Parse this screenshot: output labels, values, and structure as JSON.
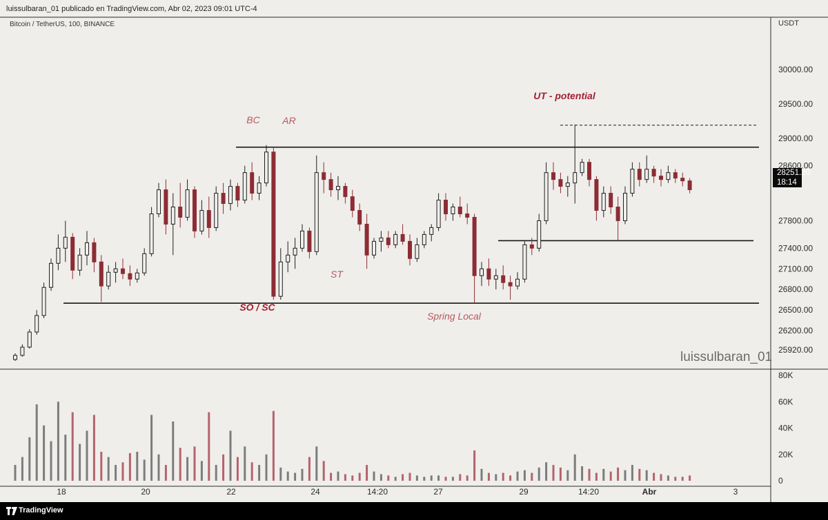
{
  "header": {
    "publish_line": "luissulbaran_01 publicado en TradingView.com, Abr 02, 2023 09:01 UTC-4",
    "symbol_line": "Bitcoin / TetherUS, 100, BINANCE",
    "currency": "USDT",
    "watermark": "luissulbaran_01"
  },
  "price_tag": {
    "price": "28251.20",
    "countdown": "18:14"
  },
  "footer": {
    "brand": "TradingView"
  },
  "colors": {
    "up_candle": "#1f1f1f",
    "down_candle": "#8d2c34",
    "volume_up": "#7c7c7c",
    "volume_down": "#b5636b",
    "annotation_dark": "#a3202f",
    "annotation_light": "#b8585f",
    "background": "#efeeeb"
  },
  "chart_data": {
    "type": "candlestick",
    "price_axis": {
      "ticks": [
        "30000.00",
        "29500.00",
        "29000.00",
        "28600.00",
        "28251.20",
        "27800.00",
        "27400.00",
        "27100.00",
        "26800.00",
        "26500.00",
        "26200.00",
        "25920.00"
      ],
      "ylim": [
        25780,
        30300
      ]
    },
    "time_axis": {
      "ticks": [
        "18",
        "20",
        "22",
        "24",
        "14:20",
        "27",
        "29",
        "14:20",
        "Abr",
        "3"
      ]
    },
    "volume_axis": {
      "ticks": [
        "80K",
        "60K",
        "40K",
        "20K",
        "0"
      ],
      "ylim": [
        0,
        80000
      ]
    },
    "annotations": [
      {
        "text": "BC",
        "style": "light"
      },
      {
        "text": "AR",
        "style": "light"
      },
      {
        "text": "UT - potential",
        "style": "dark"
      },
      {
        "text": "SO / SC",
        "style": "dark"
      },
      {
        "text": "ST",
        "style": "light"
      },
      {
        "text": "Spring Local",
        "style": "light"
      }
    ],
    "levels": [
      {
        "name": "range-top",
        "price": 28870
      },
      {
        "name": "range-bottom",
        "price": 26600
      },
      {
        "name": "ut-high",
        "price": 29190
      },
      {
        "name": "support-mid",
        "price": 27510
      }
    ],
    "candles": [
      [
        25780,
        25870,
        25760,
        25840
      ],
      [
        25840,
        26000,
        25820,
        25960
      ],
      [
        25960,
        26220,
        25940,
        26180
      ],
      [
        26180,
        26500,
        26140,
        26420
      ],
      [
        26420,
        26900,
        26380,
        26830
      ],
      [
        26830,
        27250,
        26780,
        27180
      ],
      [
        27180,
        27600,
        27080,
        27400
      ],
      [
        27400,
        27800,
        27200,
        27560
      ],
      [
        27560,
        27620,
        26950,
        27080
      ],
      [
        27080,
        27400,
        27000,
        27300
      ],
      [
        27300,
        27650,
        27150,
        27480
      ],
      [
        27480,
        27550,
        27050,
        27200
      ],
      [
        27200,
        27300,
        26620,
        26850
      ],
      [
        26850,
        27150,
        26800,
        27050
      ],
      [
        27050,
        27200,
        26900,
        27100
      ],
      [
        27100,
        27250,
        26950,
        27030
      ],
      [
        27030,
        27150,
        26850,
        26950
      ],
      [
        26950,
        27100,
        26900,
        27040
      ],
      [
        27040,
        27400,
        27000,
        27320
      ],
      [
        27320,
        28000,
        27280,
        27900
      ],
      [
        27900,
        28350,
        27850,
        28250
      ],
      [
        28250,
        28400,
        27600,
        27750
      ],
      [
        27750,
        28200,
        27300,
        28000
      ],
      [
        28000,
        28350,
        27700,
        27850
      ],
      [
        27850,
        28400,
        27800,
        28250
      ],
      [
        28250,
        28300,
        27550,
        27650
      ],
      [
        27650,
        28100,
        27600,
        27950
      ],
      [
        27950,
        28150,
        27550,
        27700
      ],
      [
        27700,
        28300,
        27650,
        28200
      ],
      [
        28200,
        28350,
        27900,
        28050
      ],
      [
        28050,
        28400,
        27950,
        28300
      ],
      [
        28300,
        28350,
        28000,
        28100
      ],
      [
        28100,
        28600,
        28050,
        28500
      ],
      [
        28500,
        28650,
        28100,
        28200
      ],
      [
        28200,
        28450,
        28100,
        28350
      ],
      [
        28350,
        28900,
        28300,
        28800
      ],
      [
        28800,
        28860,
        26650,
        26700
      ],
      [
        26700,
        27400,
        26650,
        27200
      ],
      [
        27200,
        27500,
        27050,
        27300
      ],
      [
        27300,
        27550,
        27100,
        27400
      ],
      [
        27400,
        27750,
        27350,
        27650
      ],
      [
        27650,
        27700,
        27250,
        27350
      ],
      [
        27350,
        28750,
        27300,
        28500
      ],
      [
        28500,
        28650,
        28200,
        28400
      ],
      [
        28400,
        28500,
        28150,
        28250
      ],
      [
        28250,
        28450,
        28100,
        28300
      ],
      [
        28300,
        28350,
        28050,
        28150
      ],
      [
        28150,
        28250,
        27850,
        27950
      ],
      [
        27950,
        28050,
        27650,
        27750
      ],
      [
        27750,
        27900,
        27100,
        27300
      ],
      [
        27300,
        27550,
        27250,
        27500
      ],
      [
        27500,
        27650,
        27350,
        27550
      ],
      [
        27550,
        27650,
        27400,
        27450
      ],
      [
        27450,
        27650,
        27400,
        27600
      ],
      [
        27600,
        27750,
        27450,
        27500
      ],
      [
        27500,
        27600,
        27150,
        27250
      ],
      [
        27250,
        27550,
        27200,
        27450
      ],
      [
        27450,
        27650,
        27400,
        27600
      ],
      [
        27600,
        27750,
        27500,
        27700
      ],
      [
        27700,
        28200,
        27650,
        28100
      ],
      [
        28100,
        28200,
        27800,
        27900
      ],
      [
        27900,
        28050,
        27800,
        28000
      ],
      [
        28000,
        28150,
        27850,
        27900
      ],
      [
        27900,
        28050,
        27750,
        27850
      ],
      [
        27850,
        27900,
        26600,
        27000
      ],
      [
        27000,
        27200,
        26850,
        27100
      ],
      [
        27100,
        27250,
        26850,
        26950
      ],
      [
        26950,
        27100,
        26800,
        27000
      ],
      [
        27000,
        27150,
        26800,
        26900
      ],
      [
        26900,
        27000,
        26650,
        26850
      ],
      [
        26850,
        27050,
        26800,
        26950
      ],
      [
        26950,
        27500,
        26900,
        27450
      ],
      [
        27450,
        27550,
        27300,
        27400
      ],
      [
        27400,
        27900,
        27350,
        27800
      ],
      [
        27800,
        28650,
        27750,
        28500
      ],
      [
        28500,
        28650,
        28250,
        28400
      ],
      [
        28400,
        28500,
        28200,
        28300
      ],
      [
        28300,
        28450,
        28150,
        28350
      ],
      [
        28350,
        29200,
        28050,
        28500
      ],
      [
        28500,
        28700,
        28450,
        28650
      ],
      [
        28650,
        28700,
        28300,
        28400
      ],
      [
        28400,
        28450,
        27800,
        27950
      ],
      [
        27950,
        28300,
        27850,
        28200
      ],
      [
        28200,
        28300,
        27900,
        28000
      ],
      [
        28000,
        28150,
        27500,
        27800
      ],
      [
        27800,
        28300,
        27750,
        28200
      ],
      [
        28200,
        28650,
        28150,
        28550
      ],
      [
        28550,
        28650,
        28300,
        28400
      ],
      [
        28400,
        28750,
        28350,
        28550
      ],
      [
        28550,
        28600,
        28350,
        28450
      ],
      [
        28450,
        28550,
        28300,
        28400
      ],
      [
        28400,
        28600,
        28350,
        28500
      ],
      [
        28500,
        28550,
        28350,
        28420
      ],
      [
        28420,
        28500,
        28300,
        28380
      ],
      [
        28380,
        28420,
        28200,
        28251
      ]
    ],
    "volumes": [
      12000,
      18000,
      33000,
      58000,
      42000,
      30000,
      60000,
      35000,
      52000,
      28000,
      38000,
      50000,
      22000,
      18000,
      12000,
      14000,
      21000,
      22000,
      16000,
      50000,
      20000,
      12000,
      45000,
      25000,
      18000,
      26000,
      15000,
      52000,
      12000,
      20000,
      38000,
      18000,
      26000,
      14000,
      12000,
      20000,
      53000,
      10000,
      7000,
      6000,
      9000,
      18000,
      26000,
      15000,
      6000,
      7000,
      5000,
      4000,
      6000,
      12000,
      7000,
      5000,
      4000,
      3000,
      5000,
      6000,
      4000,
      3000,
      4000,
      4000,
      3000,
      3000,
      5000,
      4000,
      23000,
      9000,
      6000,
      5000,
      6000,
      4000,
      7000,
      8000,
      6000,
      10000,
      14000,
      12000,
      10000,
      8000,
      20000,
      11000,
      9000,
      6000,
      9000,
      7000,
      10000,
      8000,
      12000,
      9000,
      8000,
      6000,
      5000,
      4000,
      3000,
      3000,
      4000
    ]
  }
}
